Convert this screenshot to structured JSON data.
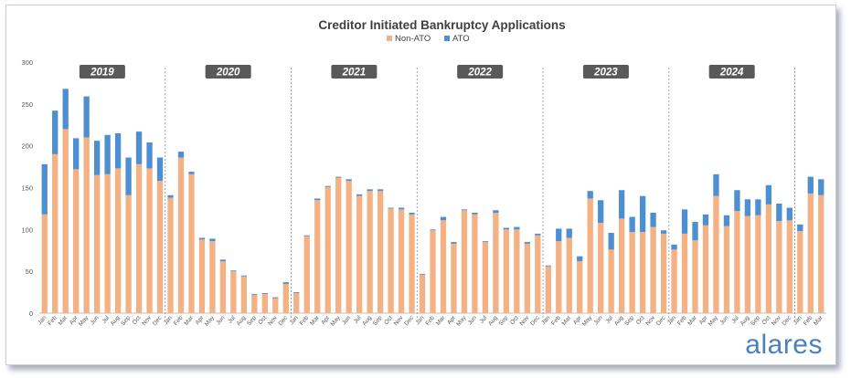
{
  "chart_data": {
    "type": "bar",
    "stacked": true,
    "title": "Creditor Initiated Bankruptcy Applications",
    "legend_position": "top-center",
    "grid": false,
    "ylim": [
      0,
      300
    ],
    "yticks": [
      0,
      50,
      100,
      150,
      200,
      250,
      300
    ],
    "year_labels": [
      "2019",
      "2020",
      "2021",
      "2022",
      "2023",
      "2024"
    ],
    "categories": [
      "Jan",
      "Feb",
      "Mar",
      "Apr",
      "May",
      "Jun",
      "Jul",
      "Aug",
      "Sep",
      "Oct",
      "Nov",
      "Dec",
      "Jan",
      "Feb",
      "Mar",
      "Apr",
      "May",
      "Jun",
      "Jul",
      "Aug",
      "Sep",
      "Oct",
      "Nov",
      "Dec",
      "Jan",
      "Feb",
      "Mar",
      "Apr",
      "May",
      "Jun",
      "Jul",
      "Aug",
      "Sep",
      "Oct",
      "Nov",
      "Dec",
      "Jan",
      "Feb",
      "Mar",
      "Apr",
      "May",
      "Jun",
      "Jul",
      "Aug",
      "Sep",
      "Oct",
      "Nov",
      "Dec",
      "Jan",
      "Feb",
      "Mar",
      "Apr",
      "May",
      "Jun",
      "Jul",
      "Aug",
      "Sep",
      "Oct",
      "Nov",
      "Dec",
      "Jan",
      "Feb",
      "Mar",
      "Apr",
      "May",
      "Jun",
      "Jul",
      "Aug",
      "Sep",
      "Oct",
      "Nov",
      "Dec",
      "Jan",
      "Feb",
      "Mar"
    ],
    "series": [
      {
        "name": "Non-ATO",
        "color": "#f4b183",
        "values": [
          118,
          190,
          220,
          172,
          210,
          165,
          166,
          173,
          141,
          178,
          173,
          158,
          138,
          186,
          166,
          88,
          86,
          62,
          50,
          44,
          22,
          23,
          18,
          35,
          24,
          92,
          135,
          151,
          162,
          158,
          140,
          146,
          146,
          125,
          124,
          118,
          46,
          99,
          111,
          83,
          123,
          118,
          85,
          120,
          100,
          100,
          83,
          93,
          56,
          86,
          90,
          62,
          137,
          108,
          76,
          113,
          97,
          97,
          103,
          95,
          76,
          95,
          87,
          105,
          140,
          104,
          122,
          116,
          117,
          130,
          110,
          111,
          98,
          143,
          141
        ]
      },
      {
        "name": "ATO",
        "color": "#4e8fd1",
        "values": [
          60,
          52,
          48,
          37,
          49,
          41,
          47,
          42,
          45,
          39,
          31,
          28,
          3,
          7,
          3,
          2,
          3,
          2,
          1,
          1,
          1,
          1,
          1,
          2,
          1,
          1,
          2,
          1,
          1,
          2,
          2,
          2,
          2,
          1,
          2,
          2,
          1,
          1,
          4,
          2,
          1,
          2,
          1,
          3,
          2,
          3,
          2,
          2,
          1,
          15,
          11,
          6,
          9,
          27,
          20,
          34,
          18,
          43,
          17,
          4,
          6,
          29,
          22,
          13,
          26,
          13,
          25,
          20,
          19,
          23,
          21,
          15,
          8,
          20,
          19
        ]
      }
    ]
  },
  "brand": {
    "logo_text": "alares",
    "logo_color": "#4a7fc0"
  }
}
